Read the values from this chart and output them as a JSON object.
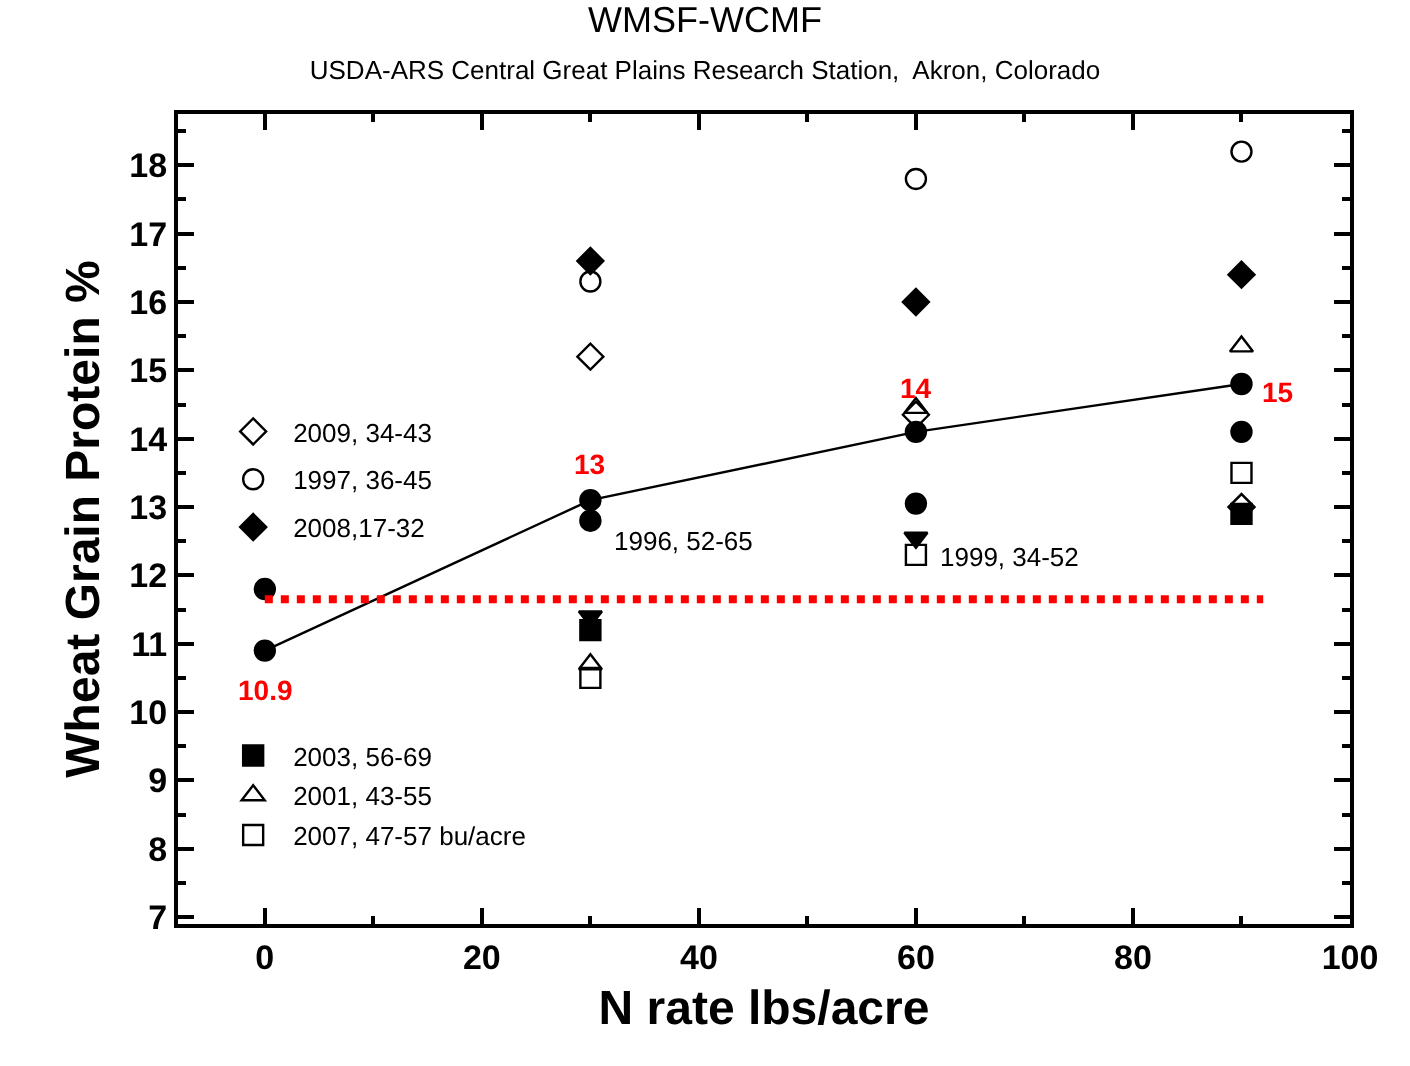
{
  "chart_data": {
    "type": "scatter",
    "title": "WMSF-WCMF",
    "subtitle": "USDA-ARS Central Great Plains Research Station,  Akron, Colorado",
    "xlabel": "N rate lbs/acre",
    "ylabel": "Wheat Grain Protein %",
    "x": [
      0,
      30,
      60,
      90
    ],
    "xlim": [
      -8,
      100
    ],
    "xticks": [
      0,
      20,
      40,
      60,
      80,
      100
    ],
    "ylim": [
      6.9,
      18.75
    ],
    "yticks": [
      7,
      8,
      9,
      10,
      11,
      12,
      13,
      14,
      15,
      16,
      17,
      18
    ],
    "legend": "left",
    "series": [
      {
        "name": "2009, 34-43",
        "color": "#000000",
        "marker": "diamond-open",
        "values": [
          null,
          15.2,
          14.35,
          13.0
        ]
      },
      {
        "name": "1997, 36-45",
        "color": "#000000",
        "marker": "circle-open",
        "values": [
          null,
          16.3,
          17.8,
          18.2
        ]
      },
      {
        "name": "2008,17-32",
        "color": "#000000",
        "marker": "diamond",
        "values": [
          null,
          16.6,
          16.0,
          16.4
        ]
      },
      {
        "name": "2003, 56-69",
        "color": "#000000",
        "marker": "square",
        "values": [
          null,
          11.2,
          null,
          12.9
        ]
      },
      {
        "name": "2001, 43-55",
        "color": "#000000",
        "marker": "triangle-up-open",
        "values": [
          null,
          10.7,
          14.45,
          15.35
        ]
      },
      {
        "name": "2007, 47-57 bu/acre",
        "color": "#000000",
        "marker": "square-open",
        "values": [
          null,
          10.5,
          12.3,
          13.5
        ]
      },
      {
        "color": "#000000",
        "marker": "circle",
        "values": [
          11.8,
          12.8,
          13.05,
          14.1
        ]
      },
      {
        "color": "#000000",
        "marker": "triangle-down",
        "values": [
          null,
          11.4,
          12.55,
          null
        ]
      },
      {
        "type": "line",
        "color": "#000000",
        "marker": "circle",
        "line_style": "solid",
        "values": [
          10.9,
          13.1,
          14.1,
          14.8
        ],
        "value_labels": [
          "10.9",
          "13",
          "14",
          "15"
        ]
      }
    ],
    "annotations": [
      {
        "text": "1996, 52-65",
        "x": 30,
        "y": 12.8
      },
      {
        "text": "1999, 34-52",
        "x": 60,
        "y": 12.55
      }
    ],
    "ref_lines": [
      {
        "axis": "y",
        "value": 11.65,
        "color": "#ff0000",
        "line_style": "dotted"
      }
    ]
  }
}
